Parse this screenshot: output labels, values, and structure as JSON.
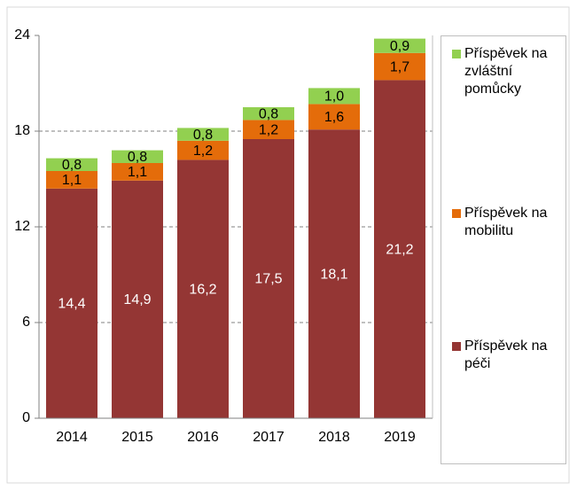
{
  "chart_data": {
    "type": "stacked_bar",
    "categories": [
      "2014",
      "2015",
      "2016",
      "2017",
      "2018",
      "2019"
    ],
    "series": [
      {
        "name": "Příspěvek na péči",
        "color": "#943634",
        "values": [
          14.4,
          14.9,
          16.2,
          17.5,
          18.1,
          21.2
        ],
        "value_labels": [
          "14,4",
          "14,9",
          "16,2",
          "17,5",
          "18,1",
          "21,2"
        ]
      },
      {
        "name": "Příspěvek na mobilitu",
        "color": "#e46c0a",
        "values": [
          1.1,
          1.1,
          1.2,
          1.2,
          1.6,
          1.7
        ],
        "value_labels": [
          "1,1",
          "1,1",
          "1,2",
          "1,2",
          "1,6",
          "1,7"
        ]
      },
      {
        "name": "Příspěvek na zvláštní pomůcky",
        "color": "#92d050",
        "values": [
          0.8,
          0.8,
          0.8,
          0.8,
          1.0,
          0.9
        ],
        "value_labels": [
          "0,8",
          "0,8",
          "0,8",
          "0,8",
          "1,0",
          "0,9"
        ]
      }
    ],
    "ylim": [
      0,
      24
    ],
    "yticks": [
      0,
      6,
      12,
      18,
      24
    ],
    "grid": true,
    "legend": "right"
  }
}
